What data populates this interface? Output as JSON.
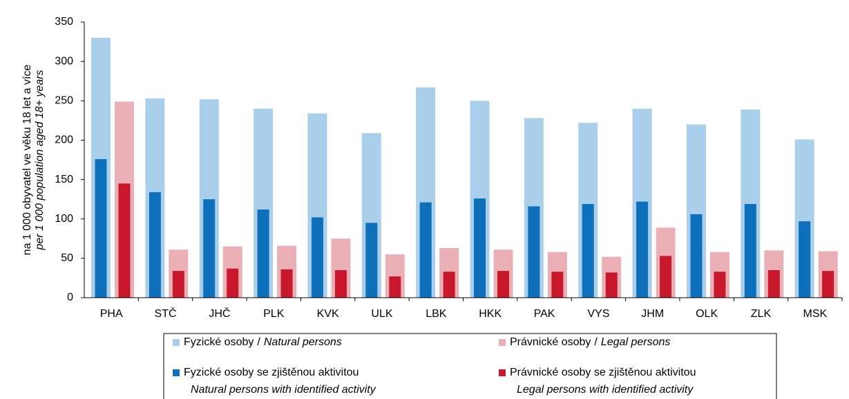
{
  "chart_data": {
    "type": "overlap-bar",
    "ylabel": "na 1 000 obyvatel ve věku 18 let a více",
    "ylabel_en": "per 1 000 population aged 18+ years",
    "categories": [
      "PHA",
      "STČ",
      "JHČ",
      "PLK",
      "KVK",
      "ULK",
      "LBK",
      "HKK",
      "PAK",
      "VYS",
      "JHM",
      "OLK",
      "ZLK",
      "MSK"
    ],
    "ylim": [
      0,
      350
    ],
    "yticks": [
      0,
      50,
      100,
      150,
      200,
      250,
      300,
      350
    ],
    "series": [
      {
        "name": "Fyzické osoby",
        "separator": "/",
        "name_en": "Natural persons",
        "color": "#a9cfea",
        "group": 0,
        "wide": true,
        "values": [
          330,
          253,
          252,
          240,
          234,
          209,
          267,
          250,
          228,
          222,
          240,
          220,
          239,
          201
        ]
      },
      {
        "name": "Právnické osoby",
        "separator": "/",
        "name_en": "Legal persons",
        "color": "#ebb0b5",
        "group": 1,
        "wide": true,
        "values": [
          249,
          61,
          65,
          66,
          75,
          55,
          63,
          61,
          58,
          52,
          89,
          58,
          60,
          59
        ]
      },
      {
        "name": "Fyzické osoby se zjištěnou aktivitou",
        "name_en": "Natural persons with identified activity",
        "color": "#0e6fba",
        "group": 0,
        "wide": false,
        "values": [
          176,
          134,
          125,
          112,
          102,
          95,
          121,
          126,
          116,
          119,
          122,
          106,
          119,
          97
        ]
      },
      {
        "name": "Právnické osoby se zjištěnou aktivitou",
        "name_en": "Legal persons with identified activity",
        "color": "#c8192c",
        "group": 1,
        "wide": false,
        "values": [
          145,
          34,
          37,
          36,
          35,
          27,
          33,
          34,
          33,
          32,
          53,
          33,
          35,
          34
        ]
      }
    ]
  }
}
